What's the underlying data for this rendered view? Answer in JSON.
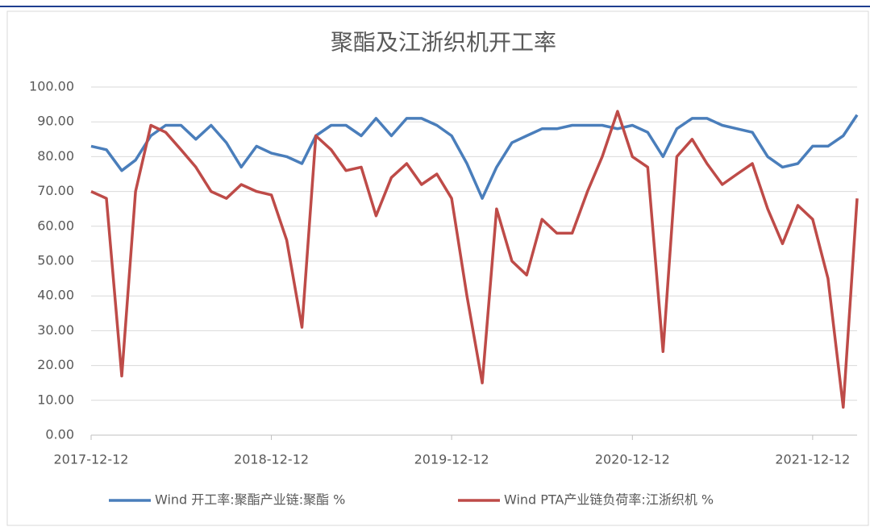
{
  "chart_data": {
    "type": "line",
    "title": "聚酯及江浙织机开工率",
    "x": [
      "2017-12-12",
      "2018-01-12",
      "2018-02-12",
      "2018-03-12",
      "2018-04-12",
      "2018-05-12",
      "2018-06-12",
      "2018-07-12",
      "2018-08-12",
      "2018-09-12",
      "2018-10-12",
      "2018-11-12",
      "2018-12-12",
      "2019-01-12",
      "2019-02-12",
      "2019-03-12",
      "2019-04-12",
      "2019-05-12",
      "2019-06-12",
      "2019-07-12",
      "2019-08-12",
      "2019-09-12",
      "2019-10-12",
      "2019-11-12",
      "2019-12-12",
      "2020-01-12",
      "2020-02-12",
      "2020-03-12",
      "2020-04-12",
      "2020-05-12",
      "2020-06-12",
      "2020-07-12",
      "2020-08-12",
      "2020-09-12",
      "2020-10-12",
      "2020-11-12",
      "2020-12-12",
      "2021-01-12",
      "2021-02-12",
      "2021-03-12",
      "2021-04-12",
      "2021-05-12",
      "2021-06-12",
      "2021-07-12",
      "2021-08-12",
      "2021-09-12",
      "2021-10-12",
      "2021-11-12",
      "2021-12-12",
      "2022-01-12",
      "2022-02-12",
      "2022-03-12"
    ],
    "series": [
      {
        "name": "Wind 开工率:聚酯产业链:聚酯 %",
        "color": "#4a7ebb",
        "values": [
          83,
          82,
          76,
          79,
          86,
          89,
          89,
          85,
          89,
          84,
          77,
          83,
          81,
          80,
          78,
          86,
          89,
          89,
          86,
          91,
          86,
          91,
          91,
          89,
          86,
          78,
          68,
          77,
          84,
          86,
          88,
          88,
          89,
          89,
          89,
          88,
          89,
          87,
          80,
          88,
          91,
          91,
          89,
          88,
          87,
          80,
          77,
          78,
          83,
          83,
          86,
          92
        ]
      },
      {
        "name": "Wind PTA产业链负荷率:江浙织机 %",
        "color": "#be4b48",
        "values": [
          70,
          68,
          17,
          70,
          89,
          87,
          82,
          77,
          70,
          68,
          72,
          70,
          69,
          56,
          31,
          86,
          82,
          76,
          77,
          63,
          74,
          78,
          72,
          75,
          68,
          40,
          15,
          65,
          50,
          46,
          62,
          58,
          58,
          70,
          80,
          93,
          80,
          77,
          24,
          80,
          85,
          78,
          72,
          75,
          78,
          65,
          55,
          66,
          62,
          45,
          8,
          68
        ]
      }
    ],
    "xlim": [
      "2017-12-12",
      "2022-03-12"
    ],
    "xticks": [
      "2017-12-12",
      "2018-12-12",
      "2019-12-12",
      "2020-12-12",
      "2021-12-12"
    ],
    "ylim": [
      0,
      100
    ],
    "yticks": [
      {
        "value": 0,
        "label": "0.00"
      },
      {
        "value": 10,
        "label": "10.00"
      },
      {
        "value": 20,
        "label": "20.00"
      },
      {
        "value": 30,
        "label": "30.00"
      },
      {
        "value": 40,
        "label": "40.00"
      },
      {
        "value": 50,
        "label": "50.00"
      },
      {
        "value": 60,
        "label": "60.00"
      },
      {
        "value": 70,
        "label": "70.00"
      },
      {
        "value": 80,
        "label": "80.00"
      },
      {
        "value": 90,
        "label": "90.00"
      },
      {
        "value": 100,
        "label": "100.00"
      }
    ],
    "grid": true,
    "legend": "bottom"
  }
}
